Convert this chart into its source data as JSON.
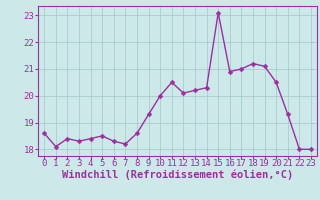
{
  "x_values": [
    0,
    1,
    2,
    3,
    4,
    5,
    6,
    7,
    8,
    9,
    10,
    11,
    12,
    13,
    14,
    15,
    16,
    17,
    18,
    19,
    20,
    21,
    22,
    23
  ],
  "y_values": [
    18.6,
    18.1,
    18.4,
    18.3,
    18.4,
    18.5,
    18.3,
    18.2,
    18.6,
    19.3,
    20.0,
    20.5,
    20.1,
    20.2,
    20.3,
    23.1,
    20.9,
    21.0,
    21.2,
    21.1,
    20.5,
    19.3,
    18.0,
    18.0
  ],
  "line_color": "#9b30a0",
  "marker_color": "#9b30a0",
  "bg_color": "#cce8e8",
  "grid_color": "#aacccc",
  "xlabel": "Windchill (Refroidissement éolien,°C)",
  "ylabel": "",
  "ylim": [
    17.75,
    23.35
  ],
  "xlim": [
    -0.5,
    23.5
  ],
  "yticks": [
    18,
    19,
    20,
    21,
    22,
    23
  ],
  "xticks": [
    0,
    1,
    2,
    3,
    4,
    5,
    6,
    7,
    8,
    9,
    10,
    11,
    12,
    13,
    14,
    15,
    16,
    17,
    18,
    19,
    20,
    21,
    22,
    23
  ],
  "font_color": "#9b30a0",
  "font_size": 6.5,
  "xlabel_fontsize": 7.5,
  "linewidth": 1.0,
  "markersize": 2.5
}
